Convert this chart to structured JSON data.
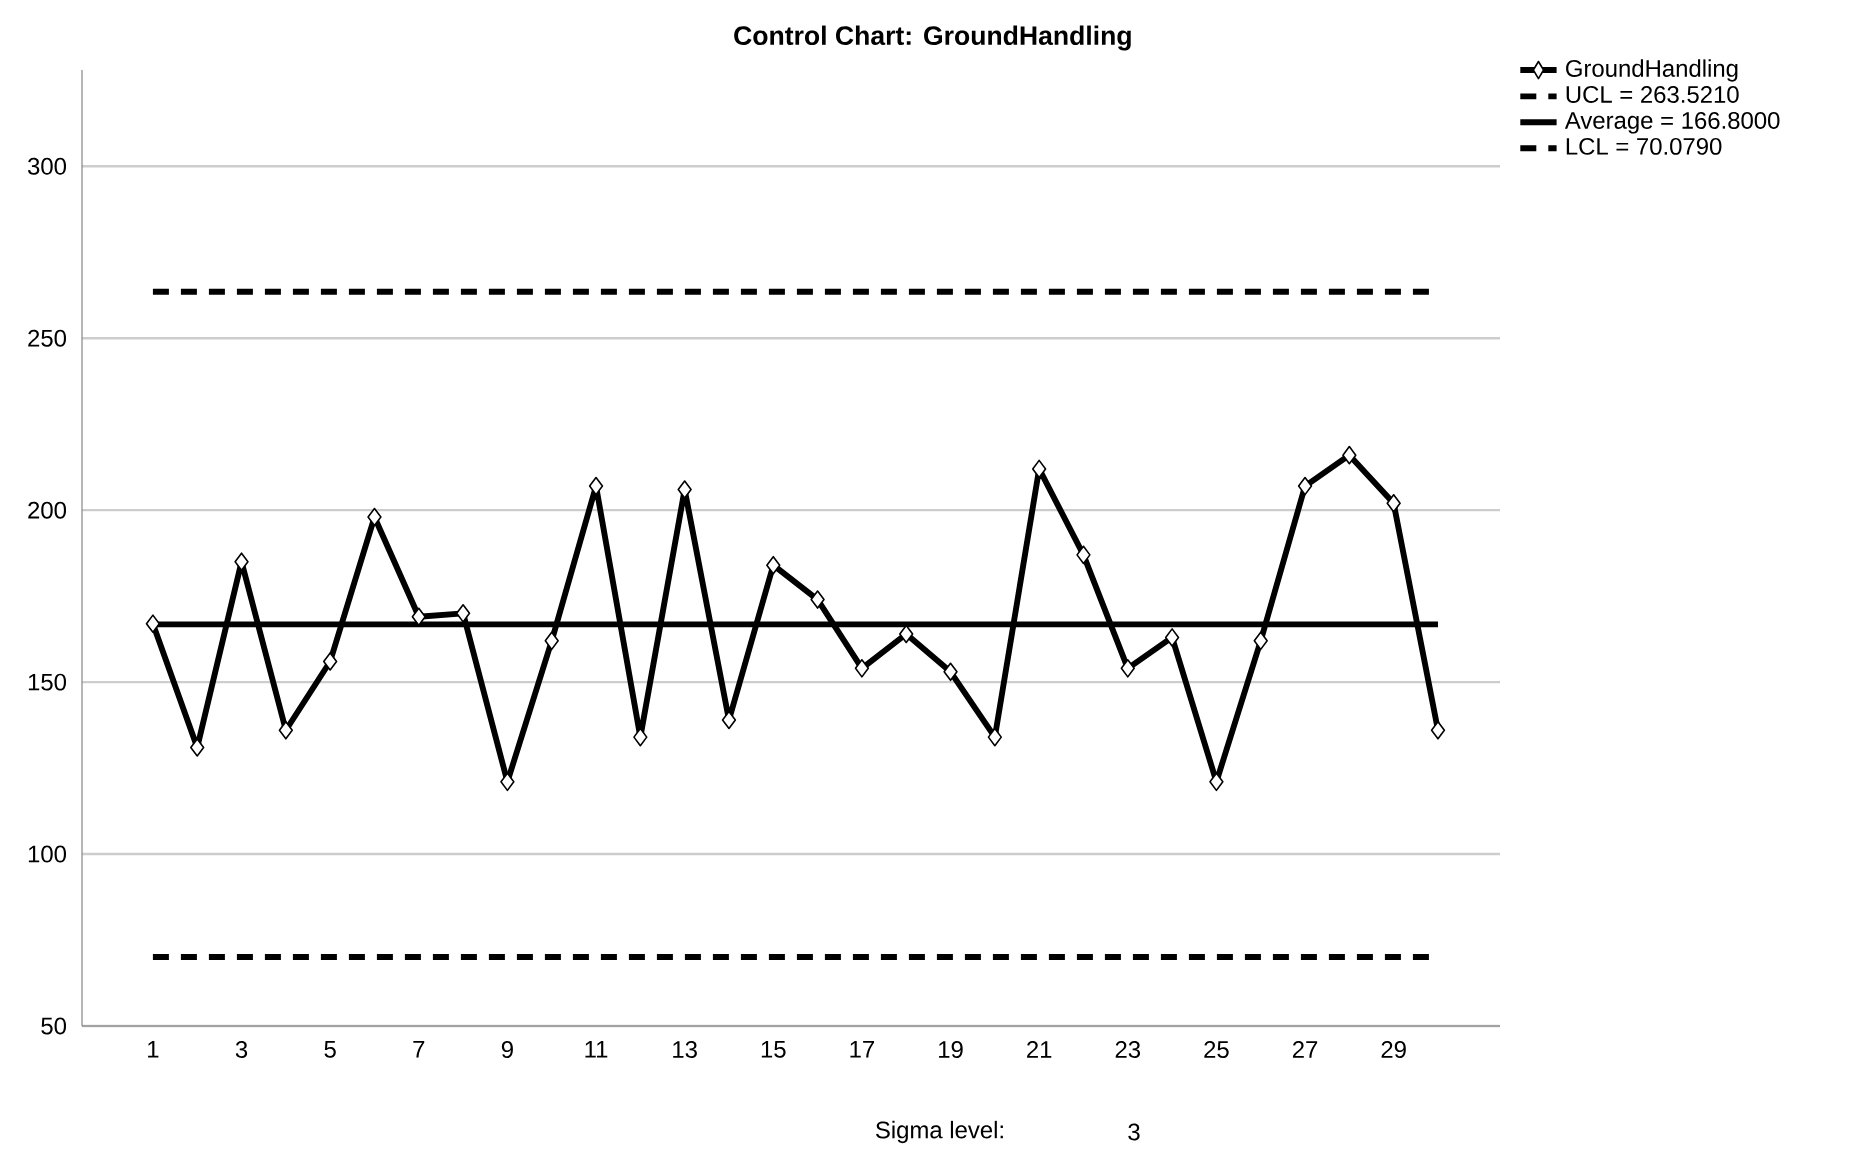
{
  "chart_data": {
    "type": "line",
    "title": "Control Chart: GroundHandling",
    "x": [
      1,
      2,
      3,
      4,
      5,
      6,
      7,
      8,
      9,
      10,
      11,
      12,
      13,
      14,
      15,
      16,
      17,
      18,
      19,
      20,
      21,
      22,
      23,
      24,
      25,
      26,
      27,
      28,
      29,
      30
    ],
    "series": [
      {
        "name": "GroundHandling",
        "color": "#000000",
        "values": [
          167,
          131,
          185,
          136,
          156,
          198,
          169,
          170,
          121,
          162,
          207,
          134,
          206,
          139,
          184,
          174,
          154,
          164,
          153,
          134,
          212,
          187,
          154,
          163,
          121,
          162,
          207,
          216,
          202,
          136
        ]
      }
    ],
    "xlim": [
      -0.6,
      31.4
    ],
    "xticks": [
      1,
      3,
      5,
      7,
      9,
      11,
      13,
      15,
      17,
      19,
      21,
      23,
      25,
      27,
      29
    ],
    "ylim": [
      50,
      328
    ],
    "yticks": [
      50,
      100,
      150,
      200,
      250,
      300
    ],
    "ref_lines": [
      {
        "axis": "y",
        "value": 263.521,
        "label": "UCL = 263.5210",
        "line_style": "dashed",
        "color": "#000000"
      },
      {
        "axis": "y",
        "value": 166.8,
        "label": "Average = 166.8000",
        "line_style": "solid",
        "color": "#000000"
      },
      {
        "axis": "y",
        "value": 70.079,
        "label": "LCL = 70.0790",
        "line_style": "dashed",
        "color": "#000000"
      }
    ],
    "annotations": [
      "Sigma level:",
      "3"
    ],
    "grid": "y",
    "legend": "top right",
    "marker": "diamond",
    "line_style": "solid"
  }
}
